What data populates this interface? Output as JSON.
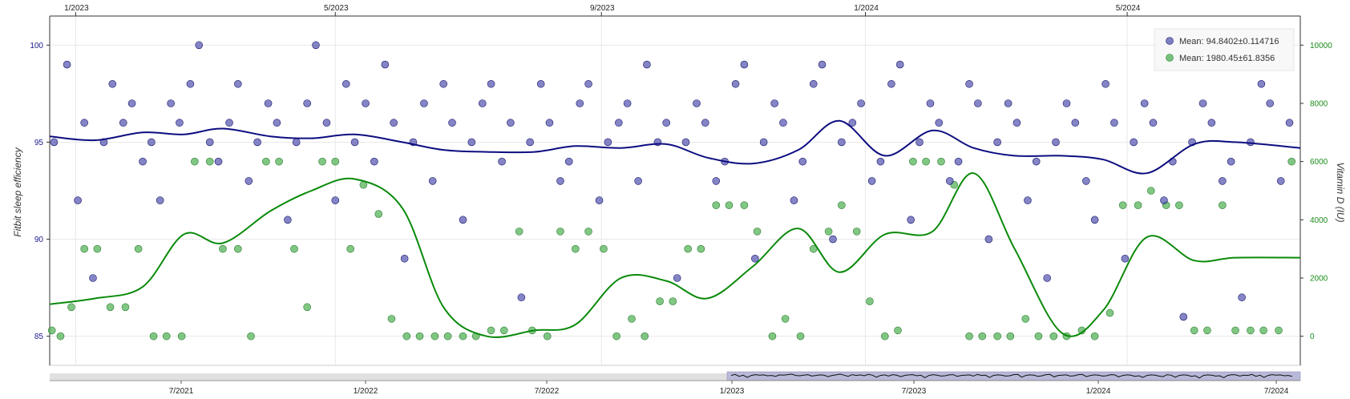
{
  "chart_data": {
    "type": "scatter",
    "top_x_ticks": [
      "1/2023",
      "5/2023",
      "9/2023",
      "1/2024",
      "5/2024"
    ],
    "range_ticks": [
      "7/2021",
      "1/2022",
      "7/2022",
      "1/2023",
      "7/2023",
      "1/2024",
      "7/2024"
    ],
    "y_left": {
      "label": "Fitbit sleep efficiency",
      "ticks": [
        85,
        90,
        95,
        100
      ],
      "range": [
        83.5,
        101.5
      ],
      "color": "#1a1a8c"
    },
    "y_right": {
      "label": "Vitamin D (IU)",
      "ticks": [
        0,
        2000,
        4000,
        6000,
        8000,
        10000
      ],
      "range": [
        -1000,
        11000
      ],
      "color": "#1a8c1a"
    },
    "x_range": [
      "2022-12-20",
      "2024-07-20"
    ],
    "grid": true,
    "legend_position": "top-right",
    "legend": [
      {
        "label": "Mean: 94.8402±0.114716",
        "color": "#5555b0"
      },
      {
        "label": "Mean: 1980.45±61.8356",
        "color": "#4caf50"
      }
    ],
    "series": [
      {
        "name": "Mean: 94.8402±0.114716",
        "axis": "left",
        "color": "#5555b0",
        "x": [
          "2022-12-22",
          "2022-12-28",
          "2023-01-02",
          "2023-01-05",
          "2023-01-09",
          "2023-01-14",
          "2023-01-18",
          "2023-01-23",
          "2023-01-27",
          "2023-02-01",
          "2023-02-05",
          "2023-02-09",
          "2023-02-14",
          "2023-02-18",
          "2023-02-23",
          "2023-02-27",
          "2023-03-04",
          "2023-03-08",
          "2023-03-13",
          "2023-03-17",
          "2023-03-22",
          "2023-03-26",
          "2023-03-31",
          "2023-04-04",
          "2023-04-09",
          "2023-04-13",
          "2023-04-18",
          "2023-04-22",
          "2023-04-27",
          "2023-05-01",
          "2023-05-06",
          "2023-05-10",
          "2023-05-15",
          "2023-05-19",
          "2023-05-24",
          "2023-05-28",
          "2023-06-02",
          "2023-06-06",
          "2023-06-11",
          "2023-06-15",
          "2023-06-20",
          "2023-06-24",
          "2023-06-29",
          "2023-07-03",
          "2023-07-08",
          "2023-07-12",
          "2023-07-17",
          "2023-07-21",
          "2023-07-26",
          "2023-07-30",
          "2023-08-04",
          "2023-08-08",
          "2023-08-13",
          "2023-08-17",
          "2023-08-22",
          "2023-08-26",
          "2023-08-31",
          "2023-09-04",
          "2023-09-09",
          "2023-09-13",
          "2023-09-18",
          "2023-09-22",
          "2023-09-27",
          "2023-10-01",
          "2023-10-06",
          "2023-10-10",
          "2023-10-15",
          "2023-10-19",
          "2023-10-24",
          "2023-10-28",
          "2023-11-02",
          "2023-11-06",
          "2023-11-11",
          "2023-11-15",
          "2023-11-20",
          "2023-11-24",
          "2023-11-29",
          "2023-12-03",
          "2023-12-08",
          "2023-12-12",
          "2023-12-17",
          "2023-12-21",
          "2023-12-26",
          "2023-12-30",
          "2024-01-04",
          "2024-01-08",
          "2024-01-13",
          "2024-01-17",
          "2024-01-22",
          "2024-01-26",
          "2024-01-31",
          "2024-02-04",
          "2024-02-09",
          "2024-02-13",
          "2024-02-18",
          "2024-02-22",
          "2024-02-27",
          "2024-03-02",
          "2024-03-07",
          "2024-03-11",
          "2024-03-16",
          "2024-03-20",
          "2024-03-25",
          "2024-03-29",
          "2024-04-03",
          "2024-04-07",
          "2024-04-12",
          "2024-04-16",
          "2024-04-21",
          "2024-04-25",
          "2024-04-30",
          "2024-05-04",
          "2024-05-09",
          "2024-05-13",
          "2024-05-18",
          "2024-05-22",
          "2024-05-27",
          "2024-05-31",
          "2024-06-05",
          "2024-06-09",
          "2024-06-14",
          "2024-06-18",
          "2024-06-23",
          "2024-06-27",
          "2024-07-02",
          "2024-07-06",
          "2024-07-11",
          "2024-07-15"
        ],
        "y": [
          95,
          99,
          92,
          96,
          88,
          95,
          98,
          96,
          97,
          94,
          95,
          92,
          97,
          96,
          98,
          100,
          95,
          94,
          96,
          98,
          93,
          95,
          97,
          96,
          91,
          95,
          97,
          100,
          96,
          92,
          98,
          95,
          97,
          94,
          99,
          96,
          89,
          95,
          97,
          93,
          98,
          96,
          91,
          95,
          97,
          98,
          94,
          96,
          87,
          95,
          98,
          96,
          93,
          94,
          97,
          98,
          92,
          95,
          96,
          97,
          93,
          99,
          95,
          96,
          88,
          95,
          97,
          96,
          93,
          94,
          98,
          99,
          89,
          95,
          97,
          96,
          92,
          94,
          98,
          99,
          90,
          95,
          96,
          97,
          93,
          94,
          98,
          99,
          91,
          95,
          97,
          96,
          93,
          94,
          98,
          97,
          90,
          95,
          97,
          96,
          92,
          94,
          88,
          95,
          97,
          96,
          93,
          91,
          98,
          96,
          89,
          95,
          97,
          96,
          92,
          94,
          86,
          95,
          97,
          96,
          93,
          94,
          87,
          95,
          98,
          97,
          93,
          96
        ]
      },
      {
        "name": "Mean: 1980.45±61.8356",
        "axis": "right",
        "color": "#4caf50",
        "x": [
          "2022-12-21",
          "2022-12-25",
          "2022-12-30",
          "2023-01-05",
          "2023-01-11",
          "2023-01-17",
          "2023-01-24",
          "2023-01-30",
          "2023-02-06",
          "2023-02-12",
          "2023-02-19",
          "2023-02-25",
          "2023-03-04",
          "2023-03-10",
          "2023-03-17",
          "2023-03-23",
          "2023-03-30",
          "2023-04-05",
          "2023-04-12",
          "2023-04-18",
          "2023-04-25",
          "2023-05-01",
          "2023-05-08",
          "2023-05-14",
          "2023-05-21",
          "2023-05-27",
          "2023-06-03",
          "2023-06-09",
          "2023-06-16",
          "2023-06-22",
          "2023-06-29",
          "2023-07-05",
          "2023-07-12",
          "2023-07-18",
          "2023-07-25",
          "2023-07-31",
          "2023-08-07",
          "2023-08-13",
          "2023-08-20",
          "2023-08-26",
          "2023-09-02",
          "2023-09-08",
          "2023-09-15",
          "2023-09-21",
          "2023-09-28",
          "2023-10-04",
          "2023-10-11",
          "2023-10-17",
          "2023-10-24",
          "2023-10-30",
          "2023-11-06",
          "2023-11-12",
          "2023-11-19",
          "2023-11-25",
          "2023-12-02",
          "2023-12-08",
          "2023-12-15",
          "2023-12-21",
          "2023-12-28",
          "2024-01-03",
          "2024-01-10",
          "2024-01-16",
          "2024-01-23",
          "2024-01-29",
          "2024-02-05",
          "2024-02-11",
          "2024-02-18",
          "2024-02-24",
          "2024-03-02",
          "2024-03-08",
          "2024-03-15",
          "2024-03-21",
          "2024-03-28",
          "2024-04-03",
          "2024-04-10",
          "2024-04-16",
          "2024-04-23",
          "2024-04-29",
          "2024-05-06",
          "2024-05-12",
          "2024-05-19",
          "2024-05-25",
          "2024-06-01",
          "2024-06-07",
          "2024-06-14",
          "2024-06-20",
          "2024-06-27",
          "2024-07-03",
          "2024-07-10",
          "2024-07-16"
        ],
        "y": [
          200,
          0,
          1000,
          3000,
          3000,
          1000,
          1000,
          3000,
          0,
          0,
          0,
          6000,
          6000,
          3000,
          3000,
          0,
          6000,
          6000,
          3000,
          1000,
          6000,
          6000,
          3000,
          5200,
          4200,
          600,
          0,
          0,
          0,
          0,
          0,
          0,
          200,
          200,
          3600,
          200,
          0,
          3600,
          3000,
          3600,
          3000,
          0,
          600,
          0,
          1200,
          1200,
          3000,
          3000,
          4500,
          4500,
          4500,
          3600,
          0,
          600,
          0,
          3000,
          3600,
          4500,
          3600,
          1200,
          0,
          200,
          6000,
          6000,
          6000,
          5200,
          0,
          0,
          0,
          0,
          600,
          0,
          0,
          0,
          200,
          0,
          800,
          4500,
          4500,
          5000,
          4500,
          4500,
          200,
          200,
          4500,
          200,
          200,
          200,
          200,
          6000
        ]
      }
    ],
    "trend_lines": [
      {
        "axis": "left",
        "color": "#0d0d80",
        "x": [
          "2022-12-20",
          "2023-01-10",
          "2023-02-01",
          "2023-02-20",
          "2023-03-10",
          "2023-04-01",
          "2023-04-20",
          "2023-05-10",
          "2023-06-01",
          "2023-06-20",
          "2023-07-10",
          "2023-08-01",
          "2023-08-20",
          "2023-09-10",
          "2023-10-01",
          "2023-10-20",
          "2023-11-10",
          "2023-12-01",
          "2023-12-20",
          "2024-01-10",
          "2024-02-01",
          "2024-02-20",
          "2024-03-10",
          "2024-04-01",
          "2024-04-20",
          "2024-05-10",
          "2024-06-01",
          "2024-06-20",
          "2024-07-20"
        ],
        "y": [
          95.3,
          95.1,
          95.5,
          95.4,
          95.7,
          95.3,
          95.2,
          95.4,
          95.0,
          94.6,
          94.5,
          94.5,
          94.8,
          94.7,
          94.9,
          94.2,
          93.9,
          94.6,
          96.1,
          94.3,
          95.6,
          94.7,
          94.3,
          94.3,
          94.1,
          93.4,
          94.9,
          95.0,
          94.7
        ]
      },
      {
        "axis": "right",
        "color": "#0a8a0a",
        "x": [
          "2022-12-20",
          "2023-01-10",
          "2023-02-01",
          "2023-02-20",
          "2023-03-10",
          "2023-04-01",
          "2023-04-20",
          "2023-05-10",
          "2023-06-01",
          "2023-06-20",
          "2023-07-10",
          "2023-08-01",
          "2023-08-20",
          "2023-09-10",
          "2023-10-01",
          "2023-10-20",
          "2023-11-10",
          "2023-12-01",
          "2023-12-20",
          "2024-01-10",
          "2024-02-01",
          "2024-02-20",
          "2024-03-10",
          "2024-04-01",
          "2024-04-20",
          "2024-05-10",
          "2024-06-01",
          "2024-06-20",
          "2024-07-20"
        ],
        "y": [
          1100,
          1300,
          1700,
          3500,
          3200,
          4300,
          5000,
          5400,
          4400,
          1000,
          0,
          200,
          400,
          2000,
          1900,
          1300,
          2400,
          3700,
          2200,
          3500,
          3600,
          5600,
          3000,
          100,
          900,
          3400,
          2600,
          2700,
          2700
        ]
      }
    ]
  }
}
